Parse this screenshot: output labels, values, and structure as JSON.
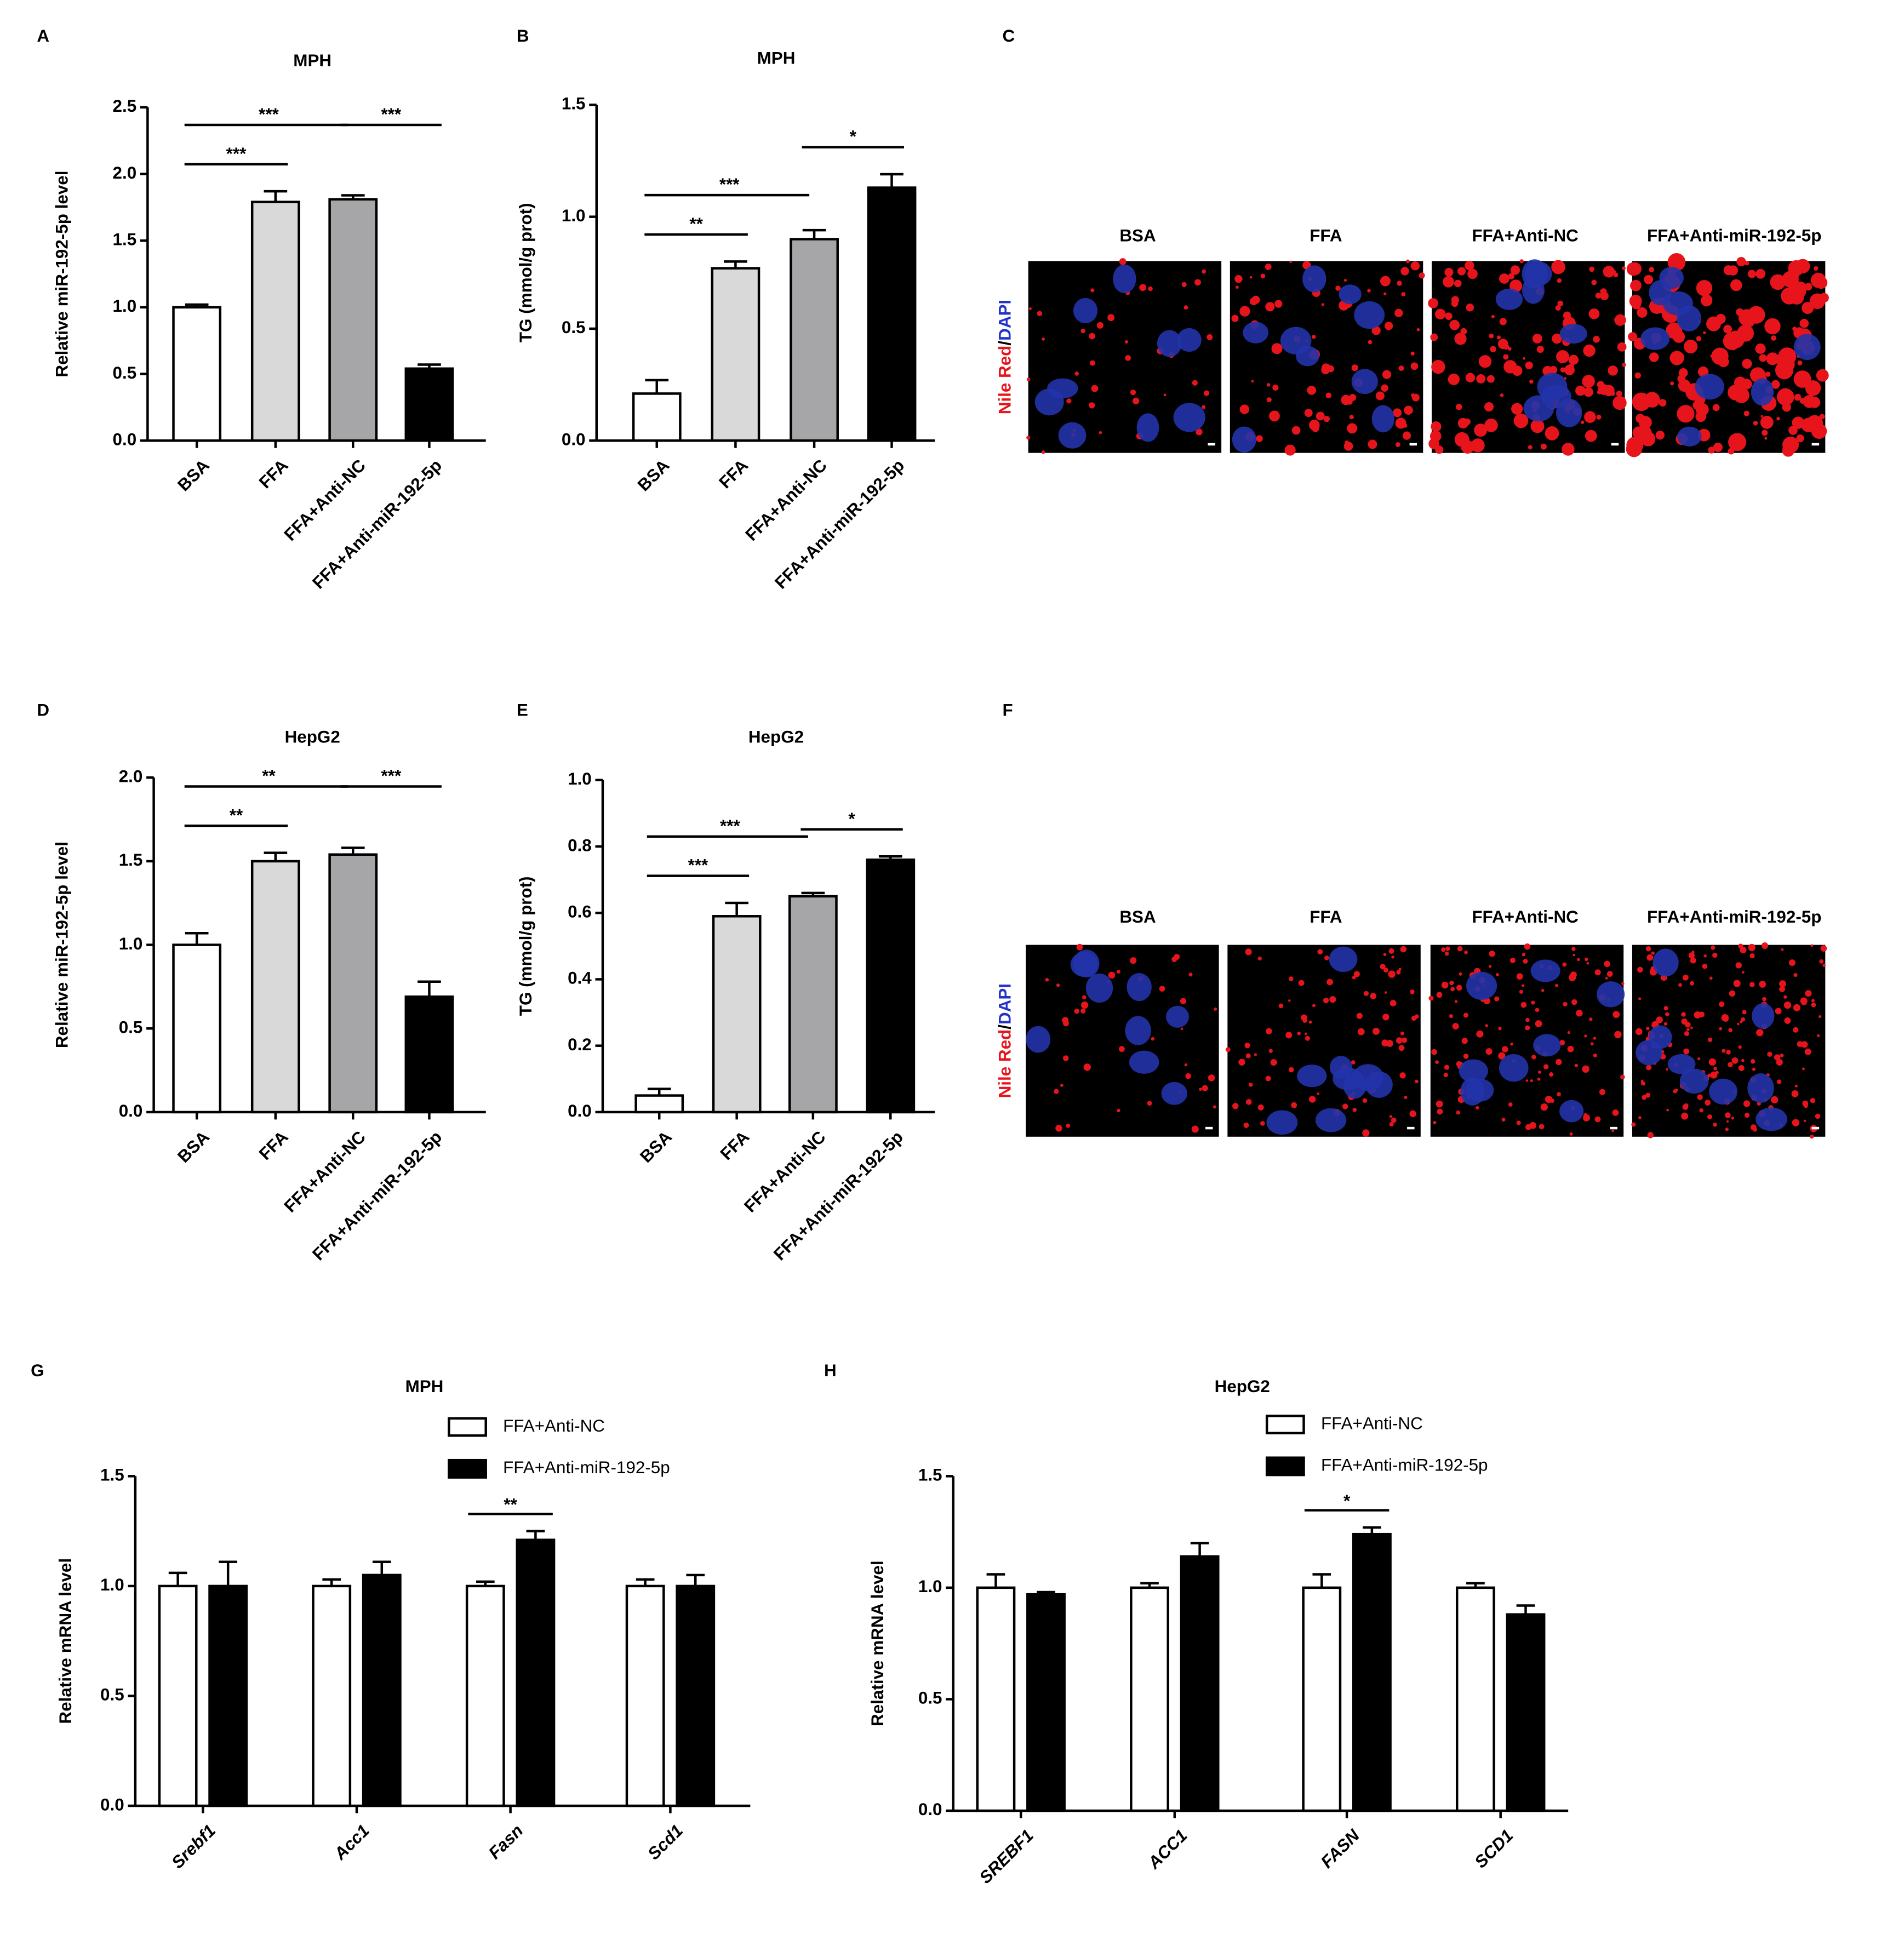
{
  "chart_data": [
    {
      "panel": "A",
      "type": "bar",
      "title": "MPH",
      "y_label": "Relative miR-192-5p level",
      "categories": [
        "BSA",
        "FFA",
        "FFA+Anti-NC",
        "FFA+Anti-miR-192-5p"
      ],
      "values": [
        1.0,
        1.79,
        1.81,
        0.54
      ],
      "errors": [
        0.02,
        0.08,
        0.03,
        0.03
      ],
      "colors": [
        "#ffffff",
        "#d9d9d9",
        "#a6a6a8",
        "#000000"
      ],
      "ylim": [
        0,
        2.5
      ],
      "yticks": [
        {
          "value": 0,
          "label": "0.0"
        },
        0.5,
        {
          "value": 1,
          "label": "1.0"
        },
        1.5,
        {
          "value": 2,
          "label": "2.0"
        },
        2.5
      ],
      "significance": [
        {
          "from": 0,
          "to": 1,
          "label": "***"
        },
        {
          "from": 0,
          "to": 2,
          "label": "***"
        },
        {
          "from": 2,
          "to": 3,
          "label": "***"
        }
      ]
    },
    {
      "panel": "B",
      "type": "bar",
      "title": "MPH",
      "y_label": "TG (mmol/g prot)",
      "categories": [
        "BSA",
        "FFA",
        "FFA+Anti-NC",
        "FFA+Anti-miR-192-5p"
      ],
      "values": [
        0.21,
        0.77,
        0.9,
        1.13
      ],
      "errors": [
        0.06,
        0.03,
        0.04,
        0.06
      ],
      "colors": [
        "#ffffff",
        "#d9d9d9",
        "#a6a6a8",
        "#000000"
      ],
      "ylim": [
        0,
        1.5
      ],
      "yticks": [
        {
          "value": 0,
          "label": "0.0"
        },
        0.5,
        {
          "value": 1,
          "label": "1.0"
        },
        1.5
      ],
      "significance": [
        {
          "from": 0,
          "to": 1,
          "label": "**"
        },
        {
          "from": 0,
          "to": 2,
          "label": "***"
        },
        {
          "from": 2,
          "to": 3,
          "label": "*"
        }
      ]
    },
    {
      "panel": "D",
      "type": "bar",
      "title": "HepG2",
      "y_label": "Relative miR-192-5p level",
      "categories": [
        "BSA",
        "FFA",
        "FFA+Anti-NC",
        "FFA+Anti-miR-192-5p"
      ],
      "values": [
        1.0,
        1.5,
        1.54,
        0.69
      ],
      "errors": [
        0.07,
        0.05,
        0.04,
        0.09
      ],
      "colors": [
        "#ffffff",
        "#d9d9d9",
        "#a6a6a8",
        "#000000"
      ],
      "ylim": [
        0,
        2
      ],
      "yticks": [
        {
          "value": 0,
          "label": "0.0"
        },
        0.5,
        {
          "value": 1,
          "label": "1.0"
        },
        1.5,
        {
          "value": 2,
          "label": "2.0"
        }
      ],
      "significance": [
        {
          "from": 0,
          "to": 1,
          "label": "**"
        },
        {
          "from": 0,
          "to": 2,
          "label": "**"
        },
        {
          "from": 2,
          "to": 3,
          "label": "***"
        }
      ]
    },
    {
      "panel": "E",
      "type": "bar",
      "title": "HepG2",
      "y_label": "TG (mmol/g prot)",
      "categories": [
        "BSA",
        "FFA",
        "FFA+Anti-NC",
        "FFA+Anti-miR-192-5p"
      ],
      "values": [
        0.05,
        0.59,
        0.65,
        0.76
      ],
      "errors": [
        0.02,
        0.04,
        0.01,
        0.01
      ],
      "colors": [
        "#ffffff",
        "#d9d9d9",
        "#a6a6a8",
        "#000000"
      ],
      "ylim": [
        0,
        1
      ],
      "yticks": [
        {
          "value": 0,
          "label": "0.0"
        },
        0.2,
        0.4,
        0.6,
        0.8,
        {
          "value": 1,
          "label": "1.0"
        }
      ],
      "significance": [
        {
          "from": 0,
          "to": 1,
          "label": "***"
        },
        {
          "from": 0,
          "to": 2,
          "label": "***"
        },
        {
          "from": 2,
          "to": 3,
          "label": "*"
        }
      ]
    },
    {
      "panel": "G",
      "type": "bar",
      "title": "MPH",
      "y_label": "Relative mRNA level",
      "categories": [
        "Srebf1",
        "Acc1",
        "Fasn",
        "Scd1"
      ],
      "series": [
        {
          "name": "FFA+Anti-NC",
          "color": "#ffffff",
          "values": [
            1.0,
            1.0,
            1.0,
            1.0
          ],
          "errors": [
            0.06,
            0.03,
            0.02,
            0.03
          ]
        },
        {
          "name": "FFA+Anti-miR-192-5p",
          "color": "#000000",
          "values": [
            1.0,
            1.05,
            1.21,
            1.0
          ],
          "errors": [
            0.11,
            0.06,
            0.04,
            0.05
          ]
        }
      ],
      "ylim": [
        0,
        1.5
      ],
      "yticks": [
        {
          "value": 0,
          "label": "0.0"
        },
        0.5,
        {
          "value": 1,
          "label": "1.0"
        },
        1.5
      ],
      "significance": [
        {
          "category": 2,
          "label": "**"
        }
      ]
    },
    {
      "panel": "H",
      "type": "bar",
      "title": "HepG2",
      "y_label": "Relative mRNA level",
      "categories": [
        "SREBF1",
        "ACC1",
        "FASN",
        "SCD1"
      ],
      "series": [
        {
          "name": "FFA+Anti-NC",
          "color": "#ffffff",
          "values": [
            1.0,
            1.0,
            1.0,
            1.0
          ],
          "errors": [
            0.06,
            0.02,
            0.06,
            0.02
          ]
        },
        {
          "name": "FFA+Anti-miR-192-5p",
          "color": "#000000",
          "values": [
            0.97,
            1.14,
            1.24,
            0.88
          ],
          "errors": [
            0.01,
            0.06,
            0.03,
            0.04
          ]
        }
      ],
      "ylim": [
        0,
        1.5
      ],
      "yticks": [
        {
          "value": 0,
          "label": "0.0"
        },
        0.5,
        {
          "value": 1,
          "label": "1.0"
        },
        1.5
      ],
      "significance": [
        {
          "category": 2,
          "label": "*"
        }
      ]
    }
  ],
  "image_panels": [
    {
      "panel": "C",
      "conditions": [
        "BSA",
        "FFA",
        "FFA+Anti-NC",
        "FFA+Anti-miR-192-5p"
      ],
      "stain": [
        "Nile Red",
        "/",
        "DAPI"
      ]
    },
    {
      "panel": "F",
      "conditions": [
        "BSA",
        "FFA",
        "FFA+Anti-NC",
        "FFA+Anti-miR-192-5p"
      ],
      "stain": [
        "Nile Red",
        "/",
        "DAPI"
      ]
    }
  ]
}
